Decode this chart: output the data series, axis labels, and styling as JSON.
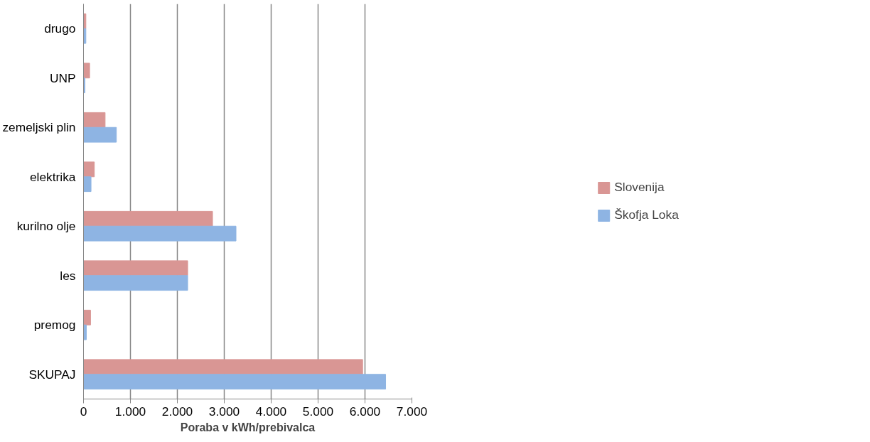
{
  "chart_data": {
    "type": "bar",
    "orientation": "horizontal",
    "xlabel": "Poraba v kWh/prebivalca",
    "categories": [
      "drugo",
      "UNP",
      "zemeljski plin",
      "elektrika",
      "kurilno olje",
      "les",
      "premog",
      "SKUPAJ"
    ],
    "series": [
      {
        "name": "Slovenija",
        "color": "#d99694",
        "values": [
          50,
          130,
          460,
          230,
          2750,
          2220,
          150,
          5950
        ]
      },
      {
        "name": "Škofja Loka",
        "color": "#8eb4e3",
        "values": [
          50,
          30,
          700,
          160,
          3250,
          2220,
          60,
          6440
        ]
      }
    ],
    "xlim": [
      0,
      7000
    ],
    "xticks": [
      0,
      {
        "value": 1000,
        "label": "1.000"
      },
      {
        "value": 2000,
        "label": "2.000"
      },
      {
        "value": 3000,
        "label": "3.000"
      },
      {
        "value": 4000,
        "label": "4.000"
      },
      {
        "value": 5000,
        "label": "5.000"
      },
      {
        "value": 6000,
        "label": "6.000"
      },
      {
        "value": 7000,
        "label": "7.000"
      }
    ],
    "grid": "x",
    "legend": "right"
  }
}
